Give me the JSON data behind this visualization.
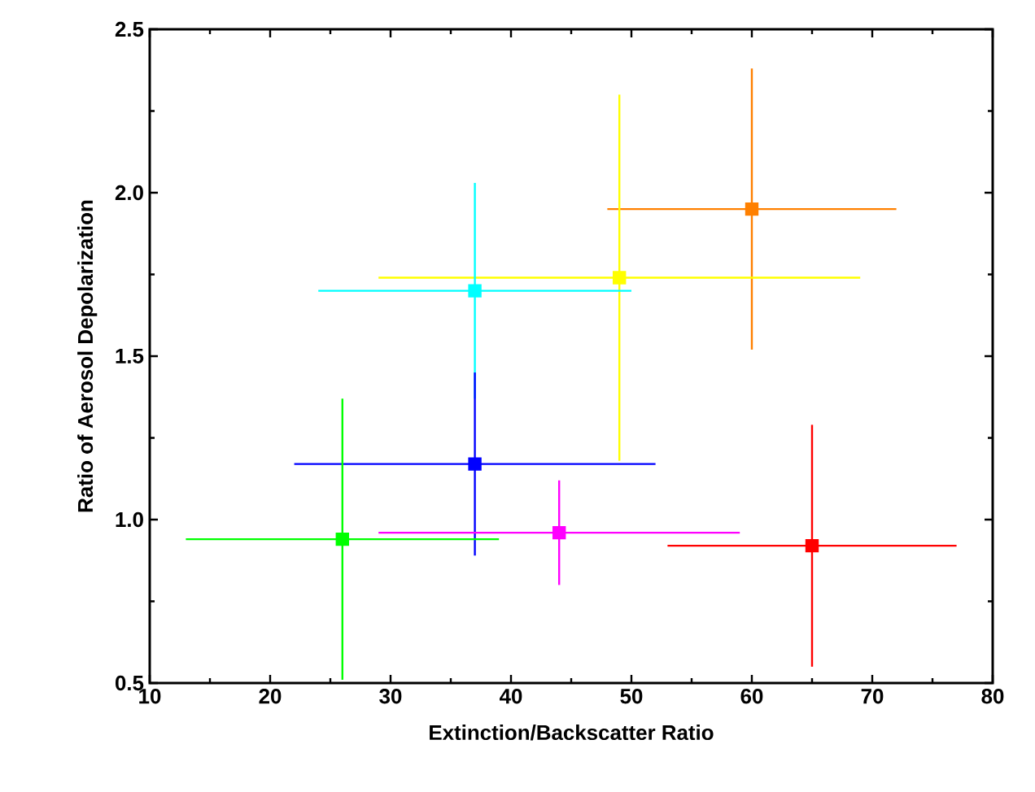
{
  "chart_data": {
    "type": "scatter",
    "xlabel": "Extinction/Backscatter Ratio",
    "ylabel": "Ratio of Aerosol Depolarization",
    "xlim": [
      10,
      80
    ],
    "ylim": [
      0.5,
      2.5
    ],
    "xticks": [
      10,
      20,
      30,
      40,
      50,
      60,
      70,
      80
    ],
    "yticks": [
      {
        "value": 0.5,
        "label": "0.5"
      },
      {
        "value": 1.0,
        "label": "1.0"
      },
      {
        "value": 1.5,
        "label": "1.5"
      },
      {
        "value": 2.0,
        "label": "2.0"
      },
      {
        "value": 2.5,
        "label": "2.5"
      }
    ],
    "marker": "square",
    "series": [
      {
        "color": "#ff8000",
        "x": [
          60
        ],
        "values": [
          1.95
        ],
        "xerrors": [
          12
        ],
        "errors": [
          [
            1.52,
            2.38
          ]
        ]
      },
      {
        "color": "#ffff00",
        "x": [
          49
        ],
        "values": [
          1.74
        ],
        "xerrors": [
          20
        ],
        "errors": [
          [
            1.18,
            2.3
          ]
        ]
      },
      {
        "color": "#00ffff",
        "x": [
          37
        ],
        "values": [
          1.7
        ],
        "xerrors": [
          13
        ],
        "errors": [
          [
            1.37,
            2.03
          ]
        ]
      },
      {
        "color": "#0000ff",
        "x": [
          37
        ],
        "values": [
          1.17
        ],
        "xerrors": [
          15
        ],
        "errors": [
          [
            0.89,
            1.45
          ]
        ]
      },
      {
        "color": "#00ff00",
        "x": [
          26
        ],
        "values": [
          0.94
        ],
        "xerrors": [
          13
        ],
        "errors": [
          [
            0.51,
            1.37
          ]
        ]
      },
      {
        "color": "#ff00ff",
        "x": [
          44
        ],
        "values": [
          0.96
        ],
        "xerrors": [
          15
        ],
        "errors": [
          [
            0.8,
            1.12
          ]
        ]
      },
      {
        "color": "#ff0000",
        "x": [
          65
        ],
        "values": [
          0.92
        ],
        "xerrors": [
          12
        ],
        "errors": [
          [
            0.55,
            1.29
          ]
        ]
      }
    ]
  }
}
